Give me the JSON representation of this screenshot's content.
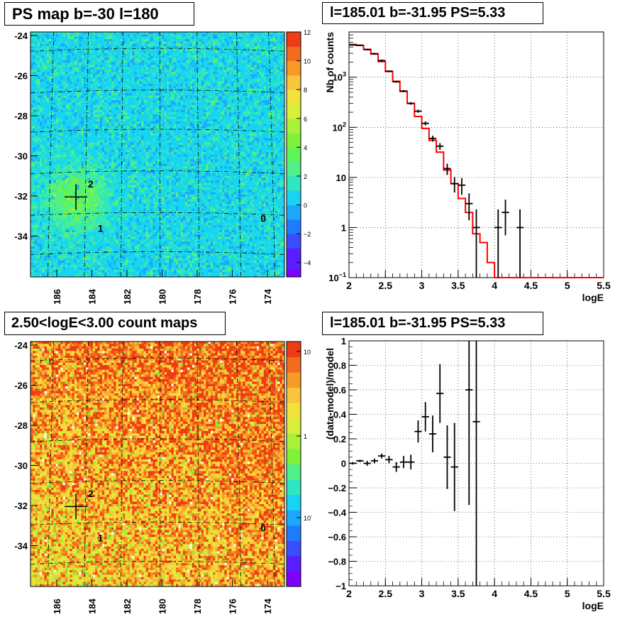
{
  "colors": {
    "model_line": "#ff0000",
    "data_points": "#000000",
    "grid": "#000000"
  },
  "panels": {
    "ps_map": {
      "title": "PS map b=-30 l=180"
    },
    "spectrum": {
      "title": "l=185.01 b=-31.95 PS=5.33"
    },
    "count_map": {
      "title": "2.50<logE<3.00 count maps"
    },
    "residual": {
      "title": "l=185.01 b=-31.95 PS=5.33"
    }
  },
  "chart_data": [
    {
      "type": "heatmap",
      "title": "PS map b=-30 l=180",
      "xlabel": "",
      "ylabel": "",
      "x_ticks": [
        "186",
        "184",
        "182",
        "180",
        "178",
        "176",
        "174"
      ],
      "y_ticks": [
        "-24",
        "-26",
        "-28",
        "-30",
        "-32",
        "-34"
      ],
      "xlim": [
        187.8,
        172.2
      ],
      "ylim": [
        -35.9,
        -23.8
      ],
      "colorbar_ticks": [
        "12",
        "10",
        "8",
        "6",
        "4",
        "2",
        "0",
        "-2",
        "-4"
      ],
      "zlim": [
        -5,
        12
      ],
      "sources": [
        {
          "label": "2",
          "l": 184.1,
          "b": -31.3
        },
        {
          "label": "1",
          "l": 183.5,
          "b": -33.5
        },
        {
          "label": "0",
          "l": 173.5,
          "b": -33.0
        }
      ],
      "marker": {
        "l": 185.01,
        "b": -31.95
      }
    },
    {
      "type": "line",
      "title": "l=185.01 b=-31.95 PS=5.33",
      "xlabel": "logE",
      "ylabel": "Nb of counts",
      "xlim": [
        2,
        5.5
      ],
      "ylim": [
        0.1,
        8000
      ],
      "log_y": true,
      "x_ticks": [
        "2",
        "2.5",
        "3",
        "3.5",
        "4",
        "4.5",
        "5",
        "5.5"
      ],
      "y_ticks": [
        {
          "label": "10",
          "sup": "−1"
        },
        {
          "label": "1"
        },
        {
          "label": "10"
        },
        {
          "label": "10",
          "sup": "2"
        },
        {
          "label": "10",
          "sup": "3"
        }
      ],
      "grid": true,
      "series": [
        {
          "kind": "step",
          "x_edges": [
            2,
            2.1,
            2.2,
            2.3,
            2.4,
            2.5,
            2.6,
            2.7,
            2.8,
            2.9,
            3.0,
            3.1,
            3.2,
            3.3,
            3.4,
            3.5,
            3.6,
            3.7,
            3.8,
            3.9,
            4.0,
            4.1,
            5.5
          ],
          "values": [
            4500,
            4300,
            3600,
            2900,
            2050,
            1300,
            830,
            520,
            300,
            165,
            95,
            55,
            32,
            14,
            7.5,
            3.8,
            2.0,
            0.75,
            0.5,
            0.2,
            0.1,
            0.1
          ]
        },
        {
          "kind": "points",
          "x": [
            2.05,
            2.15,
            2.25,
            2.35,
            2.45,
            2.55,
            2.65,
            2.75,
            2.85,
            2.95,
            3.05,
            3.15,
            3.25,
            3.35,
            3.45,
            3.55,
            3.65,
            3.75,
            4.05,
            4.15,
            4.35
          ],
          "y": [
            4400,
            4350,
            3550,
            2950,
            2150,
            1320,
            810,
            530,
            300,
            210,
            120,
            60,
            42,
            15,
            7.5,
            7.0,
            3.0,
            1.0,
            1.0,
            2.0,
            1.0
          ],
          "ylow": [
            4270,
            4220,
            3430,
            2840,
            2050,
            1280,
            780,
            505,
            282,
            195,
            109,
            52,
            35.6,
            11.2,
            5.0,
            4.5,
            1.4,
            0.1,
            0.1,
            0.7,
            0.1
          ],
          "yhigh": [
            4530,
            4480,
            3670,
            3060,
            2250,
            1360,
            840,
            555,
            318,
            225,
            131,
            68,
            48.4,
            18.8,
            10.2,
            9.7,
            4.8,
            2.3,
            2.3,
            3.6,
            2.3
          ]
        }
      ]
    },
    {
      "type": "heatmap",
      "title": "2.50<logE<3.00 count maps",
      "xlabel": "",
      "ylabel": "",
      "x_ticks": [
        "186",
        "184",
        "182",
        "180",
        "178",
        "176",
        "174"
      ],
      "y_ticks": [
        "-24",
        "-26",
        "-28",
        "-30",
        "-32",
        "-34"
      ],
      "xlim": [
        187.8,
        172.2
      ],
      "ylim": [
        -35.9,
        -23.8
      ],
      "log_z": true,
      "colorbar_ticks": [
        {
          "label": "10"
        },
        {
          "label": "1"
        },
        {
          "label": "10",
          "sup": "-1"
        }
      ],
      "sources": [
        {
          "label": "2",
          "l": 184.1,
          "b": -31.3
        },
        {
          "label": "1",
          "l": 183.5,
          "b": -33.5
        },
        {
          "label": "0",
          "l": 173.5,
          "b": -33.0
        }
      ],
      "marker": {
        "l": 185.01,
        "b": -31.95
      }
    },
    {
      "type": "scatter",
      "title": "l=185.01 b=-31.95 PS=5.33",
      "xlabel": "logE",
      "ylabel": "(data-model)/model",
      "xlim": [
        2,
        5.5
      ],
      "ylim": [
        -1,
        1
      ],
      "x_ticks": [
        "2",
        "2.5",
        "3",
        "3.5",
        "4",
        "4.5",
        "5",
        "5.5"
      ],
      "y_ticks": [
        "-1",
        "-0.8",
        "-0.6",
        "-0.4",
        "-0.2",
        "0",
        "0.2",
        "0.4",
        "0.6",
        "0.8",
        "1"
      ],
      "grid": true,
      "series": [
        {
          "kind": "points",
          "x": [
            2.05,
            2.15,
            2.25,
            2.35,
            2.45,
            2.55,
            2.65,
            2.75,
            2.85,
            2.95,
            3.05,
            3.15,
            3.25,
            3.35,
            3.45,
            3.65,
            3.75
          ],
          "y": [
            0.0,
            0.02,
            0.0,
            0.02,
            0.06,
            0.03,
            -0.03,
            0.01,
            0.01,
            0.26,
            0.38,
            0.24,
            0.57,
            0.05,
            -0.03,
            0.6,
            0.34
          ],
          "err": [
            0.01,
            0.01,
            0.02,
            0.02,
            0.02,
            0.03,
            0.04,
            0.05,
            0.06,
            0.09,
            0.12,
            0.15,
            0.24,
            0.26,
            0.36,
            0.94,
            1.4
          ]
        }
      ]
    }
  ]
}
